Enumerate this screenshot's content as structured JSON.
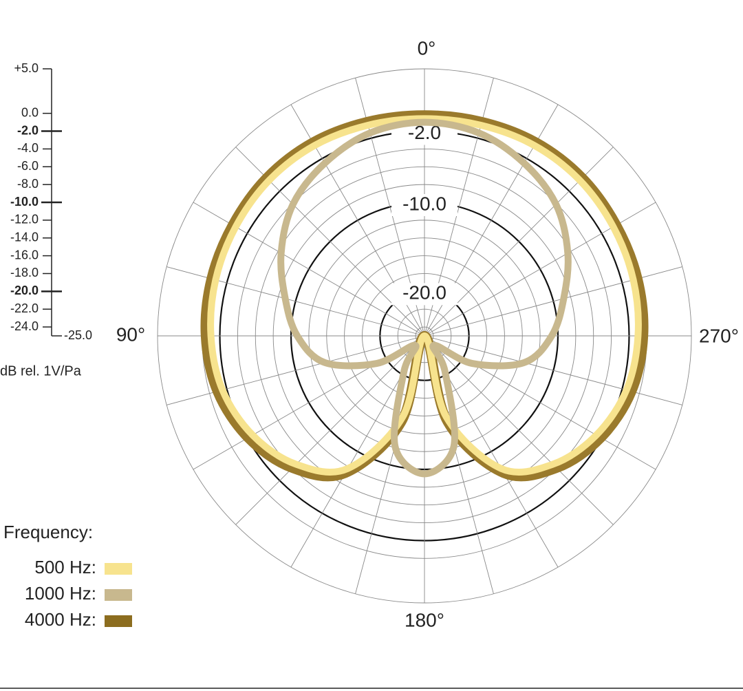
{
  "chart_data": {
    "type": "polar",
    "axis_label": "dB rel. 1V/Pa",
    "legend_title": "Frequency:",
    "ylim": [
      -25,
      5
    ],
    "yticks": [
      {
        "value": 5,
        "label": "+5.0"
      },
      {
        "value": 0,
        "label": "0.0"
      },
      {
        "value": -2,
        "label": "-2.0"
      },
      {
        "value": -4,
        "label": "-4.0"
      },
      {
        "value": -6,
        "label": "-6.0"
      },
      {
        "value": -8,
        "label": "-8.0"
      },
      {
        "value": -10,
        "label": "-10.0"
      },
      {
        "value": -12,
        "label": "-12.0"
      },
      {
        "value": -14,
        "label": "-14.0"
      },
      {
        "value": -16,
        "label": "-16.0"
      },
      {
        "value": -18,
        "label": "-18.0"
      },
      {
        "value": -20,
        "label": "-20.0"
      },
      {
        "value": -22,
        "label": "-22.0"
      },
      {
        "value": -24,
        "label": "-24.0"
      },
      {
        "value": -25,
        "label": "-25.0"
      }
    ],
    "major_ticks": [
      -2,
      -10,
      -20
    ],
    "angle_labels": [
      {
        "value": 0,
        "label": "0°"
      },
      {
        "value": 90,
        "label": "90°"
      },
      {
        "value": 180,
        "label": "180°"
      },
      {
        "value": 270,
        "label": "270°"
      }
    ],
    "angles": [
      0,
      15,
      30,
      45,
      60,
      75,
      90,
      105,
      120,
      135,
      150,
      165,
      180,
      195,
      210,
      225,
      240,
      255,
      270,
      285,
      300,
      315,
      330,
      345
    ],
    "series": [
      {
        "name": "4000 Hz:",
        "color": "#9a7a2c",
        "values": [
          -0.2,
          -0.1,
          0.1,
          0.1,
          -0.1,
          -0.2,
          -0.4,
          -0.9,
          -2.1,
          -4.0,
          -7.2,
          -15.0,
          -25.0,
          -15.0,
          -7.2,
          -4.0,
          -2.1,
          -0.9,
          -0.4,
          -0.2,
          -0.1,
          0.1,
          0.1,
          -0.1
        ]
      },
      {
        "name": "500 Hz:",
        "color": "#f7e38e",
        "values": [
          -0.6,
          -0.5,
          -0.3,
          -0.3,
          -0.5,
          -0.7,
          -1.0,
          -1.5,
          -2.7,
          -4.6,
          -7.8,
          -15.6,
          -25.0,
          -15.6,
          -7.8,
          -4.6,
          -2.7,
          -1.5,
          -1.0,
          -0.7,
          -0.5,
          -0.3,
          -0.3,
          -0.5
        ]
      },
      {
        "name": "1000 Hz:",
        "color": "#c8b88e",
        "values": [
          -1.0,
          -1.4,
          -2.6,
          -4.1,
          -6.4,
          -8.8,
          -10.7,
          -13.4,
          -18.8,
          -23.5,
          -20.4,
          -12.2,
          -9.5,
          -12.2,
          -20.4,
          -23.5,
          -18.8,
          -13.4,
          -10.7,
          -8.8,
          -6.4,
          -4.1,
          -2.6,
          -1.4
        ]
      }
    ]
  }
}
